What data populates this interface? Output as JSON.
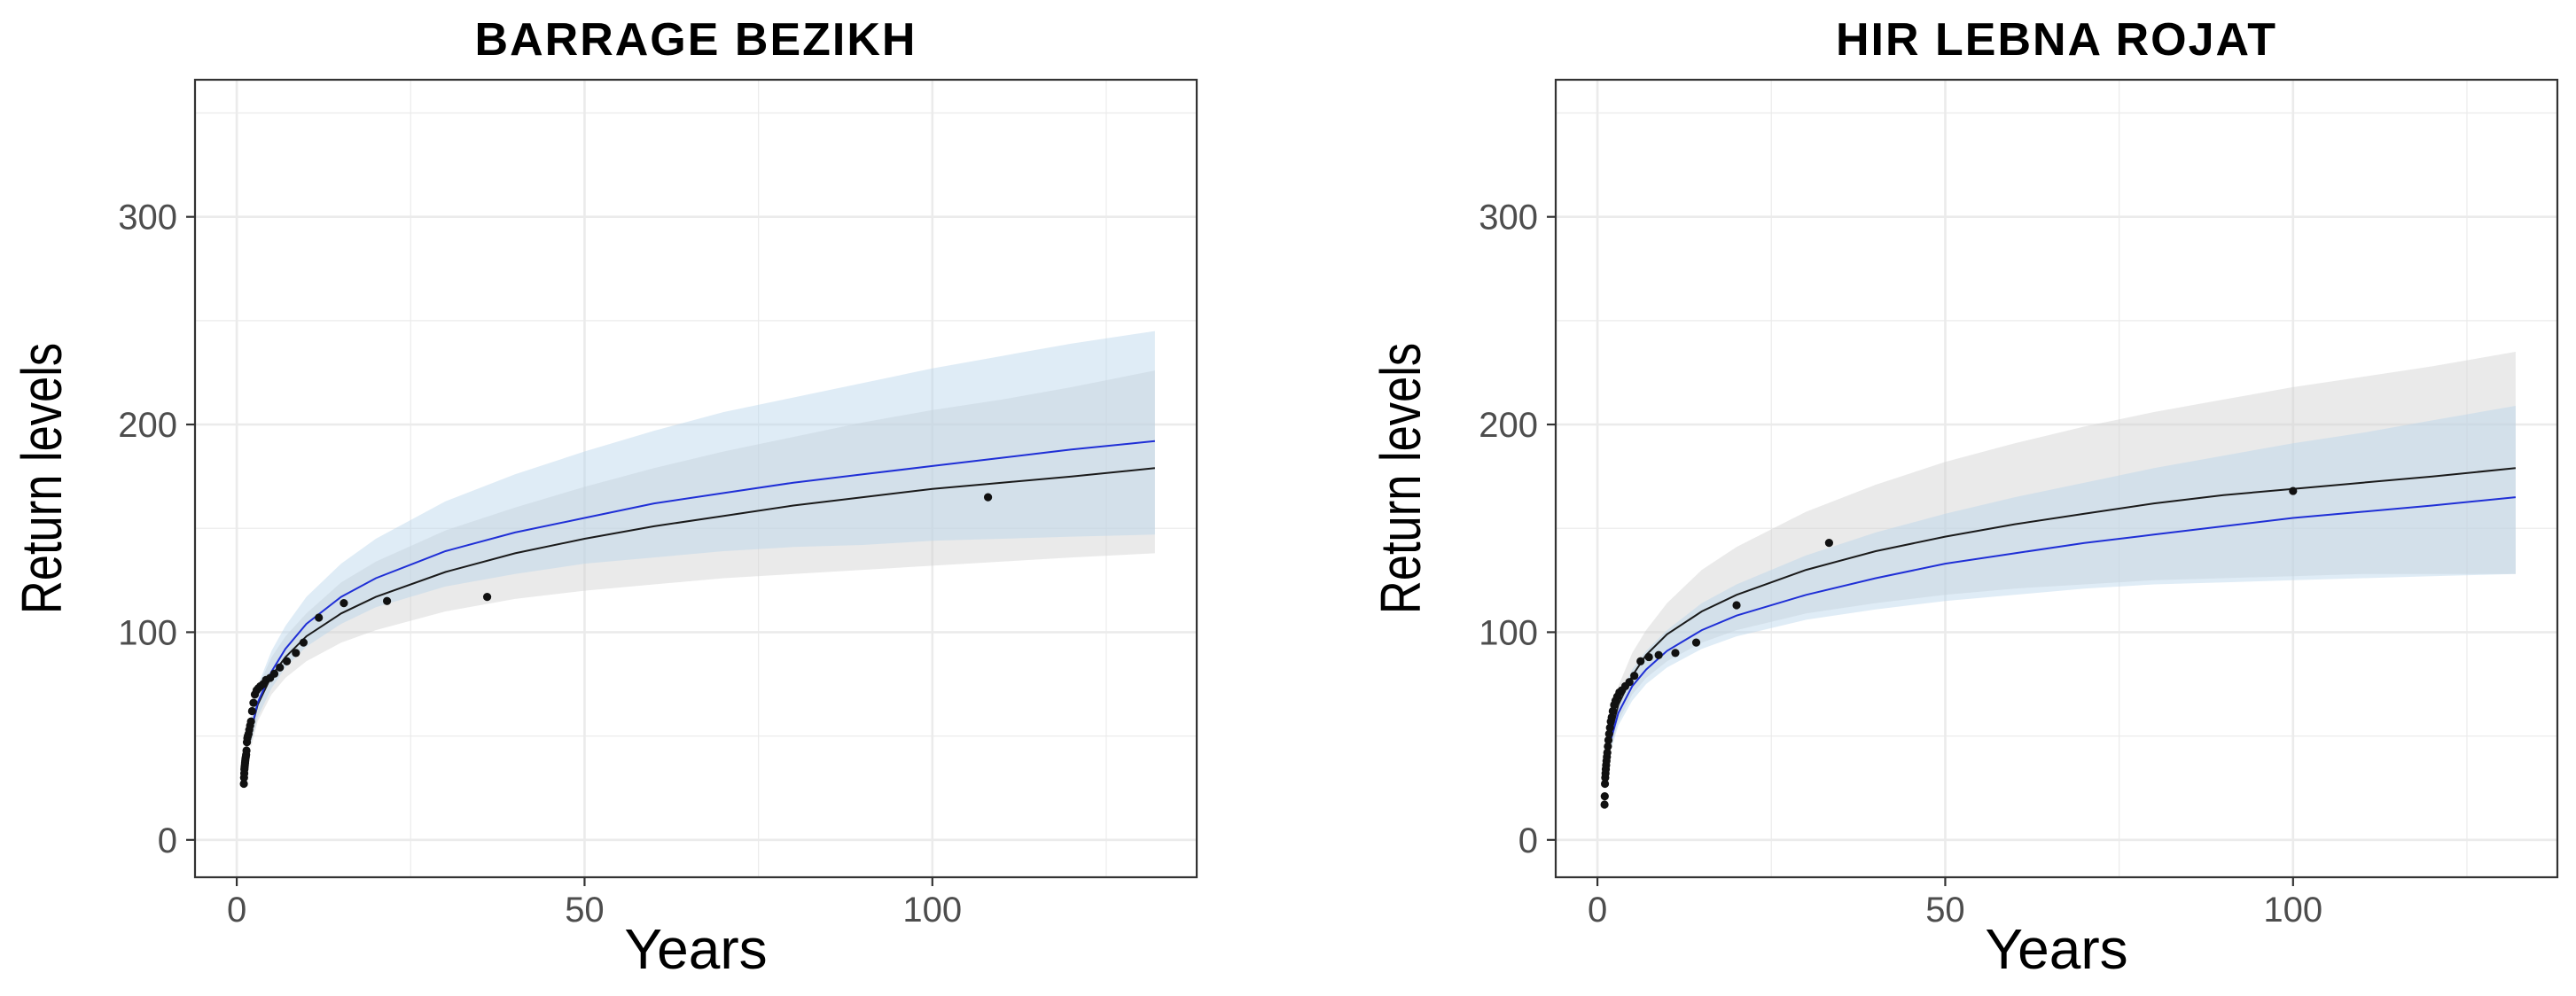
{
  "colors": {
    "gridline": "#ebebeb",
    "panel_border": "#333333",
    "band_black": "#d0d0d0",
    "band_blue": "#b7d4ea",
    "line_black": "#1a1a1a",
    "line_blue": "#1f2fd6",
    "points": "#111111"
  },
  "chart_data": [
    {
      "type": "line",
      "title": "BARRAGE BEZIKH",
      "xlabel": "Years",
      "ylabel": "Return levels",
      "xlim": [
        -6,
        138
      ],
      "ylim": [
        -18,
        366
      ],
      "xticks": [
        0,
        50,
        100
      ],
      "yticks": [
        0,
        100,
        200,
        300
      ],
      "xtick_labels": [
        "0",
        "50",
        "100"
      ],
      "ytick_labels": [
        "0",
        "100",
        "200",
        "300"
      ],
      "grid": true,
      "series": [
        {
          "style": "line",
          "color": "black",
          "x": [
            2,
            3,
            5,
            7,
            10,
            15,
            20,
            30,
            40,
            50,
            60,
            70,
            80,
            90,
            100,
            110,
            120,
            132
          ],
          "values": [
            52,
            65,
            79,
            88,
            98,
            109,
            117,
            129,
            138,
            145,
            151,
            156,
            161,
            165,
            169,
            172,
            175,
            179
          ]
        },
        {
          "style": "line",
          "color": "blue",
          "x": [
            2,
            3,
            5,
            7,
            10,
            15,
            20,
            30,
            40,
            50,
            60,
            70,
            80,
            90,
            100,
            110,
            120,
            132
          ],
          "values": [
            52,
            66,
            81,
            92,
            104,
            117,
            126,
            139,
            148,
            155,
            162,
            167,
            172,
            176,
            180,
            184,
            188,
            192
          ]
        },
        {
          "style": "band",
          "color": "black",
          "x": [
            2,
            3,
            5,
            7,
            10,
            15,
            20,
            30,
            40,
            50,
            60,
            70,
            80,
            90,
            100,
            110,
            120,
            132
          ],
          "lower": [
            44,
            57,
            70,
            78,
            86,
            95,
            101,
            110,
            116,
            120,
            123,
            126,
            128,
            130,
            132,
            134,
            136,
            138
          ],
          "upper": [
            58,
            73,
            88,
            98,
            109,
            124,
            134,
            149,
            160,
            170,
            179,
            187,
            194,
            201,
            207,
            212,
            218,
            226
          ]
        },
        {
          "style": "band",
          "color": "blue",
          "x": [
            2,
            3,
            5,
            7,
            10,
            15,
            20,
            30,
            40,
            50,
            60,
            70,
            80,
            90,
            100,
            110,
            120,
            132
          ],
          "lower": [
            46,
            59,
            73,
            83,
            93,
            104,
            112,
            122,
            128,
            133,
            136,
            139,
            141,
            142,
            144,
            145,
            146,
            147
          ],
          "upper": [
            58,
            74,
            91,
            103,
            117,
            133,
            145,
            163,
            176,
            187,
            197,
            206,
            213,
            220,
            227,
            233,
            239,
            245
          ]
        },
        {
          "style": "points",
          "x": [
            1.02,
            1.05,
            1.08,
            1.1,
            1.13,
            1.16,
            1.19,
            1.22,
            1.25,
            1.3,
            1.35,
            1.4,
            1.46,
            1.52,
            1.6,
            1.7,
            1.8,
            1.92,
            2.05,
            2.2,
            2.4,
            2.6,
            2.85,
            3.1,
            3.4,
            3.8,
            4.2,
            4.8,
            5.4,
            6.2,
            7.2,
            8.5,
            9.6,
            11.8,
            15.4,
            21.6,
            36,
            108
          ],
          "y": [
            27,
            30,
            32,
            34,
            35,
            36,
            37,
            38,
            39,
            40,
            41,
            43,
            47,
            49,
            50,
            51,
            53,
            55,
            57,
            62,
            66,
            70,
            72,
            73,
            74,
            75,
            77,
            78,
            80,
            83,
            86,
            90,
            95,
            107,
            114,
            115,
            117,
            165
          ]
        }
      ]
    },
    {
      "type": "line",
      "title": "HIR LEBNA ROJAT",
      "xlabel": "Years",
      "ylabel": "Return levels",
      "xlim": [
        -6,
        138
      ],
      "ylim": [
        -18,
        366
      ],
      "xticks": [
        0,
        50,
        100
      ],
      "yticks": [
        0,
        100,
        200,
        300
      ],
      "xtick_labels": [
        "0",
        "50",
        "100"
      ],
      "ytick_labels": [
        "0",
        "100",
        "200",
        "300"
      ],
      "grid": true,
      "series": [
        {
          "style": "line",
          "color": "black",
          "x": [
            2,
            3,
            5,
            7,
            10,
            15,
            20,
            30,
            40,
            50,
            60,
            70,
            80,
            90,
            100,
            110,
            120,
            132
          ],
          "values": [
            52,
            65,
            79,
            89,
            99,
            110,
            118,
            130,
            139,
            146,
            152,
            157,
            162,
            166,
            169,
            172,
            175,
            179
          ]
        },
        {
          "style": "line",
          "color": "blue",
          "x": [
            2,
            3,
            5,
            7,
            10,
            15,
            20,
            30,
            40,
            50,
            60,
            70,
            80,
            90,
            100,
            110,
            120,
            132
          ],
          "values": [
            49,
            61,
            74,
            82,
            91,
            101,
            108,
            118,
            126,
            133,
            138,
            143,
            147,
            151,
            155,
            158,
            161,
            165
          ]
        },
        {
          "style": "band",
          "color": "black",
          "x": [
            2,
            3,
            5,
            7,
            10,
            15,
            20,
            30,
            40,
            50,
            60,
            70,
            80,
            90,
            100,
            110,
            120,
            132
          ],
          "lower": [
            44,
            57,
            70,
            78,
            86,
            95,
            101,
            109,
            114,
            118,
            121,
            123,
            125,
            126,
            127,
            128,
            128,
            128
          ],
          "upper": [
            59,
            74,
            90,
            101,
            114,
            130,
            141,
            158,
            171,
            182,
            191,
            199,
            206,
            212,
            218,
            223,
            228,
            235
          ]
        },
        {
          "style": "band",
          "color": "blue",
          "x": [
            2,
            3,
            5,
            7,
            10,
            15,
            20,
            30,
            40,
            50,
            60,
            70,
            80,
            90,
            100,
            110,
            120,
            132
          ],
          "lower": [
            44,
            55,
            67,
            75,
            83,
            92,
            98,
            106,
            111,
            115,
            118,
            121,
            123,
            124,
            125,
            126,
            127,
            128
          ],
          "upper": [
            55,
            68,
            82,
            91,
            101,
            114,
            123,
            137,
            148,
            157,
            165,
            172,
            179,
            185,
            191,
            196,
            202,
            209
          ]
        },
        {
          "style": "points",
          "x": [
            1.02,
            1.05,
            1.08,
            1.12,
            1.16,
            1.2,
            1.25,
            1.3,
            1.36,
            1.42,
            1.5,
            1.58,
            1.68,
            1.8,
            1.92,
            2.05,
            2.2,
            2.4,
            2.6,
            2.85,
            3.15,
            3.5,
            4.0,
            4.6,
            5.3,
            6.2,
            7.4,
            8.8,
            11.2,
            14.2,
            20,
            33.3,
            100
          ],
          "y": [
            17,
            21,
            27,
            30,
            32,
            34,
            36,
            38,
            40,
            42,
            45,
            48,
            51,
            54,
            57,
            59,
            62,
            65,
            67,
            69,
            71,
            72,
            74,
            76,
            79,
            86,
            88,
            89,
            90,
            95,
            113,
            143,
            168
          ]
        }
      ]
    }
  ]
}
